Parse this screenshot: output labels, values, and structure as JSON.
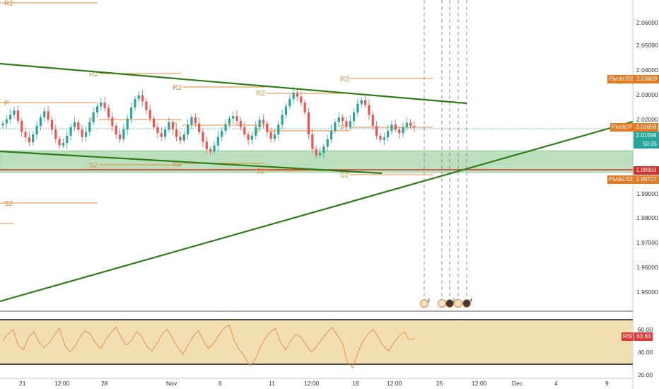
{
  "colors": {
    "candle_up": "#26a69a",
    "candle_down": "#ef5350",
    "pivot": "#e08b3c",
    "trendline": "#2e7d18",
    "zone_fill": "#a5d6a7",
    "support_red": "#d32f2f",
    "rsi_line": "#e8924a",
    "rsi_band": "#f0dba8",
    "p_label_bg": "#e07b26",
    "price_label_bg": "#26a69a",
    "rsi_label_bg": "#e53935"
  },
  "price_axis": {
    "ticks": [
      "2.06000",
      "2.05000",
      "2.04000",
      "2.03000",
      "2.02000",
      "1.99000",
      "1.98000",
      "1.97000",
      "1.96000",
      "1.95000"
    ],
    "labels": [
      {
        "text": "Pivots:R2",
        "value": "2.03609",
        "color": "#e07b26"
      },
      {
        "text": "Pivots:P",
        "value": "2.01658",
        "color": "#e07b26"
      },
      {
        "text": "",
        "value": "2.01598",
        "color": "#26a69a"
      },
      {
        "text": "",
        "value": "50:35",
        "color": "#26a69a"
      },
      {
        "text": "",
        "value": "1.99903",
        "color": "#d32f2f"
      },
      {
        "text": "Pivots:S2",
        "value": "1.99707",
        "color": "#e07b26"
      }
    ]
  },
  "time_axis": [
    "21",
    "12:00",
    "28",
    "Nov",
    "6",
    "11",
    "12:00",
    "18",
    "12:00",
    "25",
    "12:00",
    "Dec",
    "4",
    "9"
  ],
  "rsi": {
    "label": "RSI",
    "value": "53.83",
    "ticks": [
      "60.00",
      "40.00",
      "20.00"
    ]
  },
  "pivot_labels": [
    "R2",
    "R2",
    "R2",
    "R2",
    "R2",
    "P",
    "P",
    "P",
    "P",
    "P",
    "S2",
    "S2",
    "S2",
    "S2",
    "S2"
  ],
  "events": [
    {
      "icon": "flag-icon",
      "count": "3"
    },
    {
      "icon": "flag-icon",
      "count": ""
    },
    {
      "icon": "bomb-icon",
      "count": "2"
    },
    {
      "icon": "flag-icon",
      "count": ""
    },
    {
      "icon": "bomb-icon",
      "count": "4"
    }
  ],
  "chart_data": {
    "type": "candlestick",
    "price_range": [
      1.943,
      2.068
    ],
    "rsi_range": [
      20,
      70
    ],
    "close_series_note": "",
    "closes": [
      2.0175,
      2.0192,
      2.021,
      2.0228,
      2.0185,
      2.014,
      2.0118,
      2.0098,
      2.013,
      2.0165,
      2.02,
      2.0225,
      2.019,
      2.015,
      2.0112,
      2.0085,
      2.0095,
      2.0125,
      2.016,
      2.018,
      2.015,
      2.012,
      2.014,
      2.018,
      2.022,
      2.0245,
      2.026,
      2.0238,
      2.02,
      2.0165,
      2.013,
      2.011,
      2.015,
      2.0195,
      2.024,
      2.0275,
      2.029,
      2.0265,
      2.023,
      2.0195,
      2.016,
      2.0135,
      2.012,
      2.015,
      2.018,
      2.015,
      2.012,
      2.0105,
      2.013,
      2.017,
      2.02,
      2.0175,
      2.014,
      2.01,
      2.007,
      2.006,
      2.0085,
      2.012,
      2.0145,
      2.0172,
      2.0195,
      2.0205,
      2.0185,
      2.016,
      2.013,
      2.0108,
      2.0125,
      2.016,
      2.019,
      2.0175,
      2.014,
      2.0112,
      2.013,
      2.017,
      2.021,
      2.0245,
      2.0275,
      2.03,
      2.0285,
      2.026,
      2.022,
      2.013,
      2.007,
      2.0045,
      2.0055,
      2.008,
      2.011,
      2.0145,
      2.018,
      2.02,
      2.0185,
      2.016,
      2.0185,
      2.022,
      2.0255,
      2.027,
      2.025,
      2.021,
      2.0165,
      2.0125,
      2.0108,
      2.0118,
      2.0145,
      2.017,
      2.015,
      2.0135,
      2.016,
      2.0178,
      2.0165,
      2.016
    ],
    "rsi_values": [
      52,
      58,
      62,
      48,
      44,
      55,
      60,
      51,
      46,
      50,
      57,
      63,
      49,
      42,
      47,
      55,
      61,
      58,
      50,
      45,
      53,
      59,
      64,
      55,
      48,
      52,
      60,
      56,
      47,
      43,
      50,
      58,
      62,
      54,
      46,
      40,
      48,
      56,
      61,
      52,
      45,
      50,
      57,
      63,
      66,
      52,
      44,
      38,
      30,
      35,
      46,
      54,
      60,
      63,
      50,
      44,
      52,
      58,
      55,
      48,
      42,
      47,
      53,
      59,
      64,
      57,
      50,
      33,
      28,
      41,
      52,
      58,
      62,
      55,
      47,
      43,
      50,
      56,
      60,
      53,
      54
    ]
  }
}
